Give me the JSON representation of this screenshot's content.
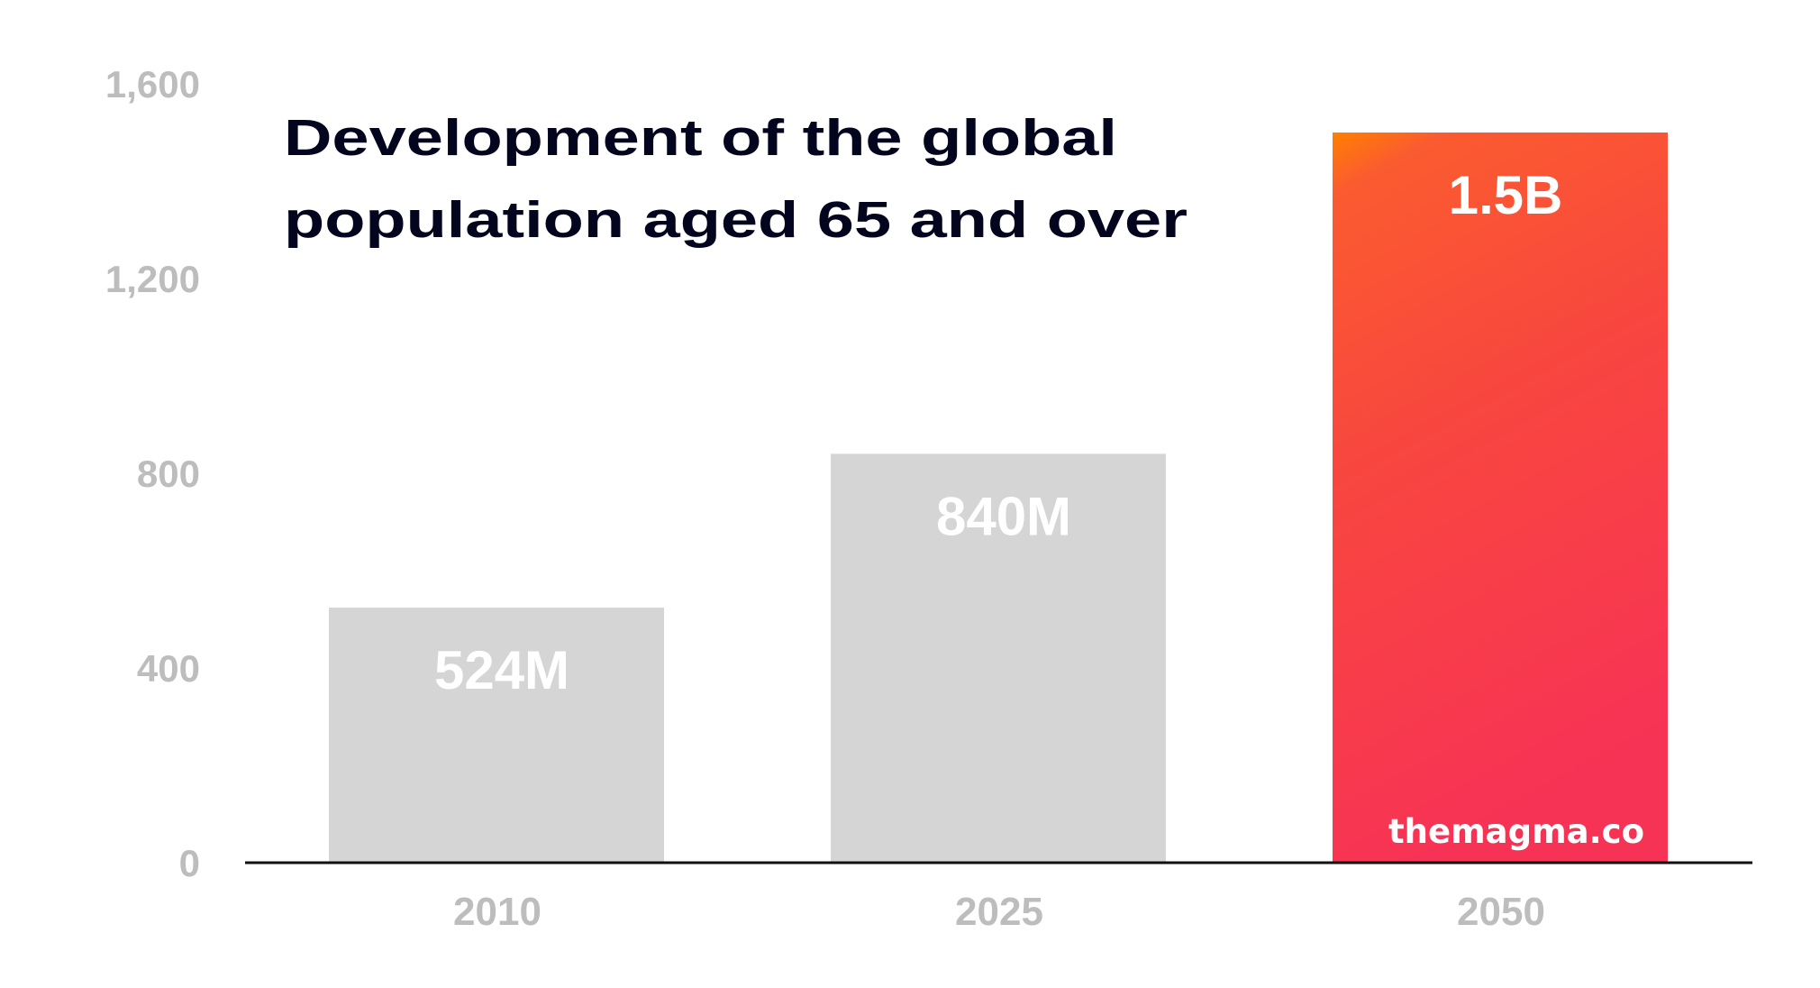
{
  "chart_data": {
    "type": "bar",
    "title": "Development of the global population aged 65 and over",
    "title_lines": [
      "Development of the global",
      "population aged 65 and over"
    ],
    "xlabel": "",
    "ylabel": "",
    "categories": [
      "2010",
      "2025",
      "2050"
    ],
    "values": [
      524,
      840,
      1500
    ],
    "value_labels": [
      "524M",
      "840M",
      "1.5B"
    ],
    "units": "millions",
    "ylim": [
      0,
      1600
    ],
    "yticks": [
      0,
      400,
      800,
      1200,
      1600
    ],
    "ytick_labels": [
      "0",
      "400",
      "800",
      "1,200",
      "1,600"
    ],
    "grid": false,
    "legend": "none",
    "highlight_index": 2,
    "watermark": "themagma.co",
    "colors": {
      "bar_default": "#d5d5d5",
      "bar_highlight_gradient": [
        "#ff8000",
        "#fb5733",
        "#f8463f",
        "#f73355"
      ],
      "axis_line": "#111111",
      "tick_label": "#bdbdbd",
      "title": "#03051e",
      "bar_label": "#ffffff"
    }
  }
}
